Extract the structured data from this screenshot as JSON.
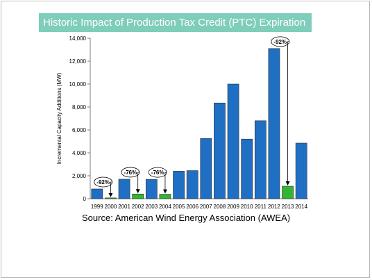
{
  "slide": {
    "title": "Historic Impact of Production Tax Credit (PTC) Expiration",
    "source": "Source: American Wind Energy Association (AWEA)"
  },
  "colors": {
    "title_bg": "#7fcdbb",
    "bar_normal": "#1f6fc4",
    "bar_expiration": "#33b533"
  },
  "chart_data": {
    "type": "bar",
    "title": "",
    "xlabel": "",
    "ylabel": "Incremental Capacity Additions (MW)",
    "ylim": [
      0,
      14000
    ],
    "yticks": [
      0,
      2000,
      4000,
      6000,
      8000,
      10000,
      12000,
      14000
    ],
    "ytick_labels": [
      "0",
      "2,000",
      "4,000",
      "6,000",
      "8,000",
      "10,000",
      "12,000",
      "14,000"
    ],
    "grid": false,
    "categories": [
      "1999",
      "2000",
      "2001",
      "2002",
      "2003",
      "2004",
      "2005",
      "2006",
      "2007",
      "2008",
      "2009",
      "2010",
      "2011",
      "2012",
      "2013",
      "2014"
    ],
    "values": [
      850,
      70,
      1700,
      410,
      1690,
      390,
      2400,
      2450,
      5250,
      8350,
      10000,
      5200,
      6800,
      13100,
      1090,
      4850
    ],
    "highlight": [
      false,
      true,
      false,
      true,
      false,
      true,
      false,
      false,
      false,
      false,
      false,
      false,
      false,
      false,
      true,
      false
    ],
    "annotations": [
      {
        "text": "-92%",
        "from_category": "1999",
        "to_category": "2000"
      },
      {
        "text": "-76%",
        "from_category": "2001",
        "to_category": "2002"
      },
      {
        "text": "-76%",
        "from_category": "2003",
        "to_category": "2004"
      },
      {
        "text": "-92%",
        "from_category": "2012",
        "to_category": "2013"
      }
    ]
  }
}
